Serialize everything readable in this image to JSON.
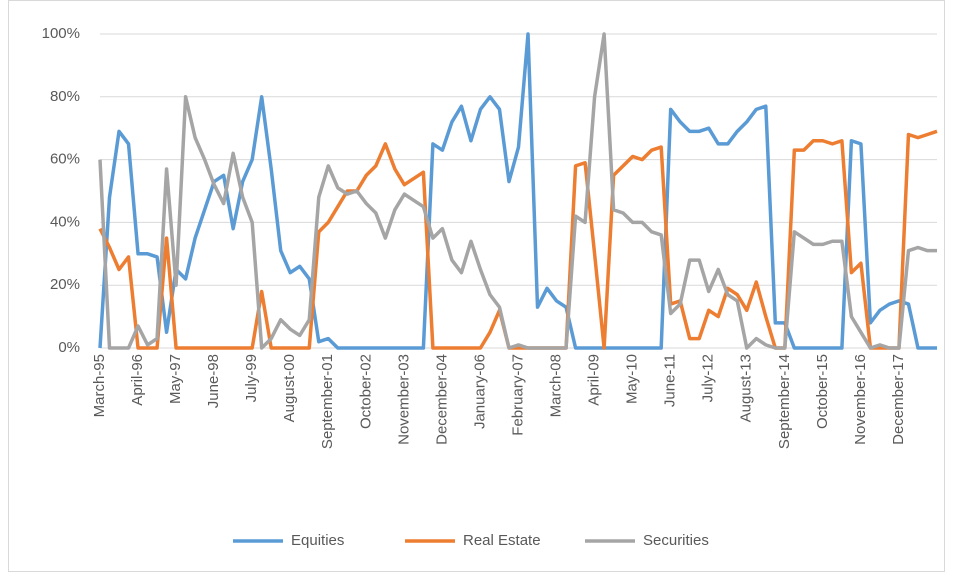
{
  "chart_data": {
    "type": "line",
    "categories": [
      "March-95",
      null,
      null,
      null,
      "April-96",
      null,
      null,
      null,
      "May-97",
      null,
      null,
      null,
      "June-98",
      null,
      null,
      null,
      "July-99",
      null,
      null,
      null,
      "August-00",
      null,
      null,
      null,
      "September-01",
      null,
      null,
      null,
      "October-02",
      null,
      null,
      null,
      "November-03",
      null,
      null,
      null,
      "December-04",
      null,
      null,
      null,
      "January-06",
      null,
      null,
      null,
      "February-07",
      null,
      null,
      null,
      "March-08",
      null,
      null,
      null,
      "April-09",
      null,
      null,
      null,
      "May-10",
      null,
      null,
      null,
      "June-11",
      null,
      null,
      null,
      "July-12",
      null,
      null,
      null,
      "August-13",
      null,
      null,
      null,
      "September-14",
      null,
      null,
      null,
      "October-15",
      null,
      null,
      null,
      "November-16",
      null,
      null,
      null,
      "December-17",
      null,
      null,
      null,
      null
    ],
    "series": [
      {
        "name": "Equities",
        "color": "#5b9bd5",
        "values": [
          0,
          48,
          69,
          65,
          30,
          30,
          29,
          5,
          25,
          22,
          35,
          44,
          53,
          55,
          38,
          53,
          60,
          80,
          57,
          31,
          24,
          26,
          22,
          2,
          3,
          0,
          0,
          0,
          0,
          0,
          0,
          0,
          0,
          0,
          0,
          65,
          63,
          72,
          77,
          66,
          76,
          80,
          76,
          53,
          64,
          100,
          13,
          19,
          15,
          13,
          0,
          0,
          0,
          0,
          0,
          0,
          0,
          0,
          0,
          0,
          76,
          72,
          69,
          69,
          70,
          65,
          65,
          69,
          72,
          76,
          77,
          8,
          8,
          0,
          0,
          0,
          0,
          0,
          0,
          66,
          65,
          8,
          12,
          14,
          15,
          14,
          0,
          0,
          0
        ]
      },
      {
        "name": "Real Estate",
        "color": "#ed7d31",
        "values": [
          38,
          32,
          25,
          29,
          0,
          0,
          0,
          35,
          0,
          0,
          0,
          0,
          0,
          0,
          0,
          0,
          0,
          18,
          0,
          0,
          0,
          0,
          0,
          37,
          40,
          45,
          50,
          50,
          55,
          58,
          65,
          57,
          52,
          54,
          56,
          0,
          0,
          0,
          0,
          0,
          0,
          5,
          12,
          0,
          0,
          0,
          0,
          0,
          0,
          0,
          58,
          59,
          30,
          0,
          55,
          58,
          61,
          60,
          63,
          64,
          14,
          15,
          3,
          3,
          12,
          10,
          19,
          17,
          12,
          21,
          10,
          0,
          0,
          63,
          63,
          66,
          66,
          65,
          66,
          24,
          27,
          0,
          0,
          0,
          0,
          68,
          67,
          68,
          69
        ]
      },
      {
        "name": "Securities",
        "color": "#a5a5a5",
        "values": [
          60,
          0,
          0,
          0,
          7,
          1,
          3,
          57,
          20,
          80,
          67,
          60,
          52,
          46,
          62,
          48,
          40,
          0,
          3,
          9,
          6,
          4,
          9,
          48,
          58,
          51,
          49,
          50,
          46,
          43,
          35,
          44,
          49,
          47,
          45,
          35,
          38,
          28,
          24,
          34,
          25,
          17,
          13,
          0,
          1,
          0,
          0,
          0,
          0,
          0,
          42,
          40,
          80,
          100,
          44,
          43,
          40,
          40,
          37,
          36,
          11,
          14,
          28,
          28,
          18,
          25,
          17,
          15,
          0,
          3,
          1,
          0,
          0,
          37,
          35,
          33,
          33,
          34,
          34,
          10,
          5,
          0,
          1,
          0,
          0,
          31,
          32,
          31,
          31
        ]
      }
    ],
    "ylim": [
      0,
      100
    ],
    "yticks": [
      {
        "value": 0,
        "label": "0%"
      },
      {
        "value": 20,
        "label": "20%"
      },
      {
        "value": 40,
        "label": "40%"
      },
      {
        "value": 60,
        "label": "60%"
      },
      {
        "value": 80,
        "label": "80%"
      },
      {
        "value": 100,
        "label": "100%"
      }
    ],
    "grid": true,
    "legend": "bottom"
  }
}
